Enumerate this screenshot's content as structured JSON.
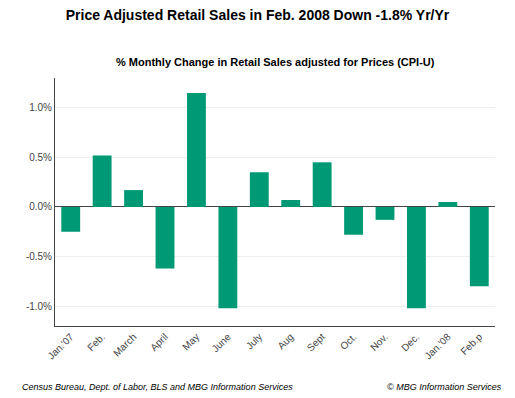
{
  "chart_data": {
    "type": "bar",
    "title": "Price Adjusted Retail Sales in Feb. 2008 Down -1.8% Yr/Yr",
    "subtitle": "% Monthly Change in Retail Sales adjusted for Prices (CPI-U)",
    "categories": [
      "Jan.'07",
      "Feb.",
      "March",
      "April",
      "May",
      "June",
      "July",
      "Aug",
      "Sept",
      "Oct.",
      "Nov.",
      "Dec.",
      "Jan.'08",
      "Feb.p"
    ],
    "values": [
      -0.25,
      0.52,
      0.17,
      -0.62,
      1.15,
      -1.02,
      0.35,
      0.07,
      0.45,
      -0.28,
      -0.13,
      -1.02,
      0.05,
      -0.8
    ],
    "color": "#009975",
    "ylim": [
      -1.2,
      1.3
    ],
    "yticks": [
      {
        "value": -1.0,
        "label": "-1.0%"
      },
      {
        "value": -0.5,
        "label": "-0.5%"
      },
      {
        "value": 0.0,
        "label": "0.0%"
      },
      {
        "value": 0.5,
        "label": "0.5%"
      },
      {
        "value": 1.0,
        "label": "1.0%"
      }
    ],
    "grid": true,
    "annotations": [
      "Census Bureau, Dept. of Labor, BLS and MBG Information Services",
      "© MBG Information Services"
    ]
  }
}
